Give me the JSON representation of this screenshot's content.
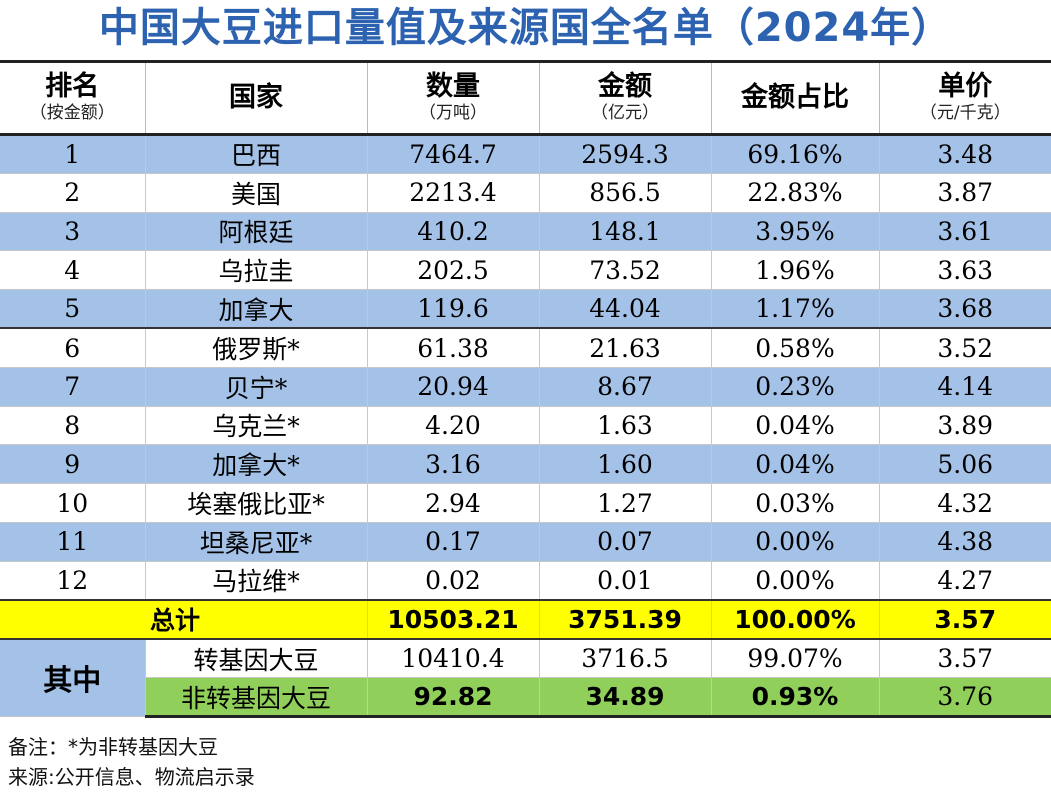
{
  "title": "中国大豆进口量值及来源国全名单（2024年）",
  "headers": [
    {
      "main": "排名",
      "sub": "（按金额）"
    },
    {
      "main": "国家",
      "sub": ""
    },
    {
      "main": "数量",
      "sub": "（万吨）"
    },
    {
      "main": "金额",
      "sub": "（亿元）"
    },
    {
      "main": "金额占比",
      "sub": ""
    },
    {
      "main": "单价",
      "sub": "（元/千克）"
    }
  ],
  "rows": [
    {
      "rank": "1",
      "country": "巴西",
      "qty": "7464.7",
      "amount": "2594.3",
      "share": "69.16%",
      "price": "3.48"
    },
    {
      "rank": "2",
      "country": "美国",
      "qty": "2213.4",
      "amount": "856.5",
      "share": "22.83%",
      "price": "3.87"
    },
    {
      "rank": "3",
      "country": "阿根廷",
      "qty": "410.2",
      "amount": "148.1",
      "share": "3.95%",
      "price": "3.61"
    },
    {
      "rank": "4",
      "country": "乌拉圭",
      "qty": "202.5",
      "amount": "73.52",
      "share": "1.96%",
      "price": "3.63"
    },
    {
      "rank": "5",
      "country": "加拿大",
      "qty": "119.6",
      "amount": "44.04",
      "share": "1.17%",
      "price": "3.68"
    },
    {
      "rank": "6",
      "country": "俄罗斯*",
      "qty": "61.38",
      "amount": "21.63",
      "share": "0.58%",
      "price": "3.52"
    },
    {
      "rank": "7",
      "country": "贝宁*",
      "qty": "20.94",
      "amount": "8.67",
      "share": "0.23%",
      "price": "4.14"
    },
    {
      "rank": "8",
      "country": "乌克兰*",
      "qty": "4.20",
      "amount": "1.63",
      "share": "0.04%",
      "price": "3.89"
    },
    {
      "rank": "9",
      "country": "加拿大*",
      "qty": "3.16",
      "amount": "1.60",
      "share": "0.04%",
      "price": "5.06"
    },
    {
      "rank": "10",
      "country": "埃塞俄比亚*",
      "qty": "2.94",
      "amount": "1.27",
      "share": "0.03%",
      "price": "4.32"
    },
    {
      "rank": "11",
      "country": "坦桑尼亚*",
      "qty": "0.17",
      "amount": "0.07",
      "share": "0.00%",
      "price": "4.38"
    },
    {
      "rank": "12",
      "country": "马拉维*",
      "qty": "0.02",
      "amount": "0.01",
      "share": "0.00%",
      "price": "4.27"
    }
  ],
  "total": {
    "label": "总计",
    "qty": "10503.21",
    "amount": "3751.39",
    "share": "100.00%",
    "price": "3.57"
  },
  "breakdown": {
    "label": "其中",
    "gmo": {
      "label": "转基因大豆",
      "qty": "10410.4",
      "amount": "3716.5",
      "share": "99.07%",
      "price": "3.57"
    },
    "non_gmo": {
      "label": "非转基因大豆",
      "qty": "92.82",
      "amount": "34.89",
      "share": "0.93%",
      "price": "3.76"
    }
  },
  "notes": {
    "note": "备注：*为非转基因大豆",
    "source": "来源:公开信息、物流启示录"
  },
  "colors": {
    "title": "#2c62b0",
    "row_blue": "#a4c2e8",
    "total_yellow": "#ffff00",
    "nongmo_green": "#8fcf5a"
  }
}
